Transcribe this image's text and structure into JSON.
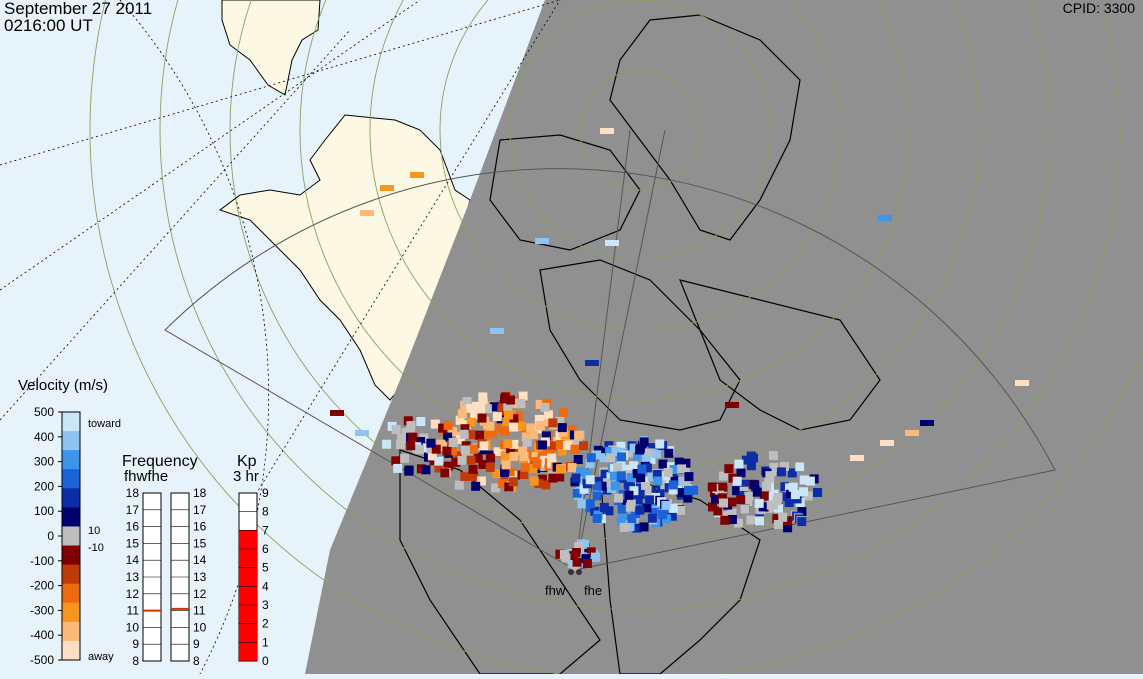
{
  "header": {
    "date": "September 27 2011",
    "time": "0216:00 UT",
    "cpid": "CPID: 3300"
  },
  "radars": [
    "fhw",
    "fhe"
  ],
  "velocity_scale": {
    "title": "Velocity (m/s)",
    "ticks": [
      "500",
      "400",
      "300",
      "200",
      "100",
      "0",
      "-100",
      "-200",
      "-300",
      "-400",
      "-500"
    ],
    "toward_label": "toward",
    "away_label": "away",
    "threshold_pos": "10",
    "threshold_neg": "-10",
    "colors": [
      "#fde0c2",
      "#fbba7a",
      "#f7951e",
      "#ee6a10",
      "#c13b0a",
      "#7e0000",
      "#bebebe",
      "#00006e",
      "#0d2da8",
      "#1b62d6",
      "#3c95ea",
      "#8fc4f2",
      "#cce6f9"
    ]
  },
  "frequency_scale": {
    "title": "Frequency",
    "radar_labels": "fhwfhe",
    "ticks": [
      "18",
      "17",
      "16",
      "15",
      "14",
      "13",
      "12",
      "11",
      "10",
      "9",
      "8"
    ],
    "fhw_value": 11.0,
    "fhe_value": 11.1,
    "marker_color": "#cc3300"
  },
  "kp_scale": {
    "title": "Kp",
    "subtitle": "3 hr",
    "ticks": [
      "9",
      "8",
      "7",
      "6",
      "5",
      "4",
      "3",
      "2",
      "1",
      "0"
    ],
    "value": 7,
    "fill_color": "#ff0000"
  },
  "map": {
    "ocean_color": "#e6f3fb",
    "land_color": "#fcf8e4",
    "night_color": "#909090",
    "grid_color": "#8aa060"
  }
}
